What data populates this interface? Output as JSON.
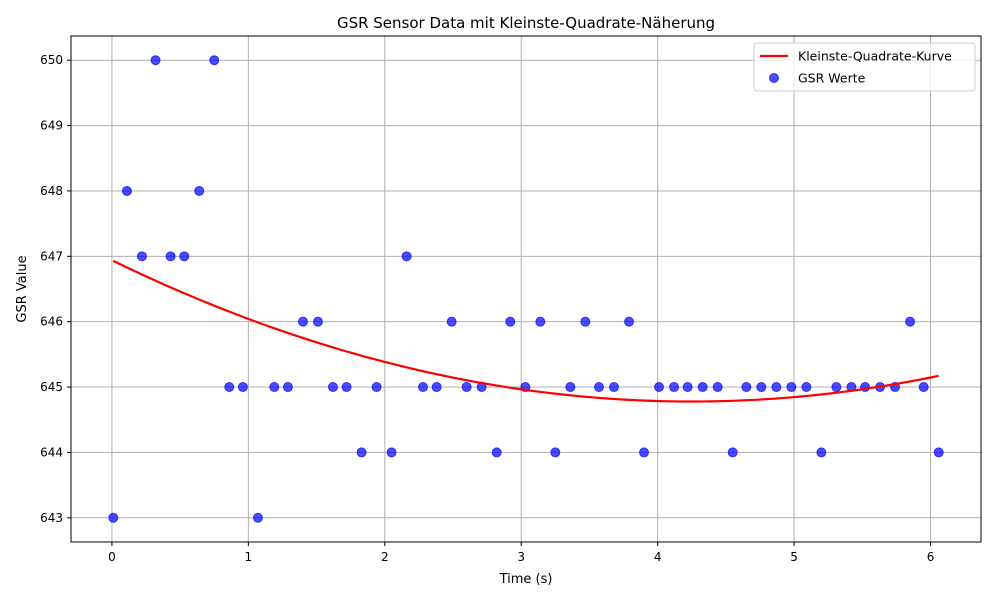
{
  "chart_data": {
    "type": "scatter",
    "title": "GSR Sensor Data mit Kleinste-Quadrate-Näherung",
    "xlabel": "Time (s)",
    "ylabel": "GSR Value",
    "xlim": [
      -0.3,
      6.37
    ],
    "ylim": [
      642.63,
      650.37
    ],
    "x_ticks": [
      0,
      1,
      2,
      3,
      4,
      5,
      6
    ],
    "y_ticks": [
      643,
      644,
      645,
      646,
      647,
      648,
      649,
      650
    ],
    "grid": true,
    "legend_position": "top-right",
    "series": [
      {
        "name": "Kleinste-Quadrate-Kurve",
        "kind": "line",
        "color": "#ff0000",
        "coefficients": [
          646.94,
          -1.0172,
          0.1197
        ]
      },
      {
        "name": "GSR Werte",
        "kind": "scatter",
        "color": "#0000ff",
        "opacity": 0.7,
        "points": [
          [
            0.01,
            643
          ],
          [
            0.11,
            648
          ],
          [
            0.22,
            647
          ],
          [
            0.32,
            650
          ],
          [
            0.43,
            647
          ],
          [
            0.53,
            647
          ],
          [
            0.64,
            648
          ],
          [
            0.75,
            650
          ],
          [
            0.86,
            645
          ],
          [
            0.96,
            645
          ],
          [
            1.07,
            643
          ],
          [
            1.19,
            645
          ],
          [
            1.29,
            645
          ],
          [
            1.4,
            646
          ],
          [
            1.51,
            646
          ],
          [
            1.62,
            645
          ],
          [
            1.72,
            645
          ],
          [
            1.83,
            644
          ],
          [
            1.94,
            645
          ],
          [
            2.05,
            644
          ],
          [
            2.16,
            647
          ],
          [
            2.28,
            645
          ],
          [
            2.38,
            645
          ],
          [
            2.49,
            646
          ],
          [
            2.6,
            645
          ],
          [
            2.71,
            645
          ],
          [
            2.82,
            644
          ],
          [
            2.92,
            646
          ],
          [
            3.03,
            645
          ],
          [
            3.14,
            646
          ],
          [
            3.25,
            644
          ],
          [
            3.36,
            645
          ],
          [
            3.47,
            646
          ],
          [
            3.57,
            645
          ],
          [
            3.68,
            645
          ],
          [
            3.79,
            646
          ],
          [
            3.9,
            644
          ],
          [
            4.01,
            645
          ],
          [
            4.12,
            645
          ],
          [
            4.22,
            645
          ],
          [
            4.33,
            645
          ],
          [
            4.44,
            645
          ],
          [
            4.55,
            644
          ],
          [
            4.65,
            645
          ],
          [
            4.76,
            645
          ],
          [
            4.87,
            645
          ],
          [
            4.98,
            645
          ],
          [
            5.09,
            645
          ],
          [
            5.2,
            644
          ],
          [
            5.31,
            645
          ],
          [
            5.42,
            645
          ],
          [
            5.52,
            645
          ],
          [
            5.63,
            645
          ],
          [
            5.74,
            645
          ],
          [
            5.85,
            646
          ],
          [
            5.95,
            645
          ],
          [
            6.06,
            644
          ]
        ]
      }
    ]
  }
}
